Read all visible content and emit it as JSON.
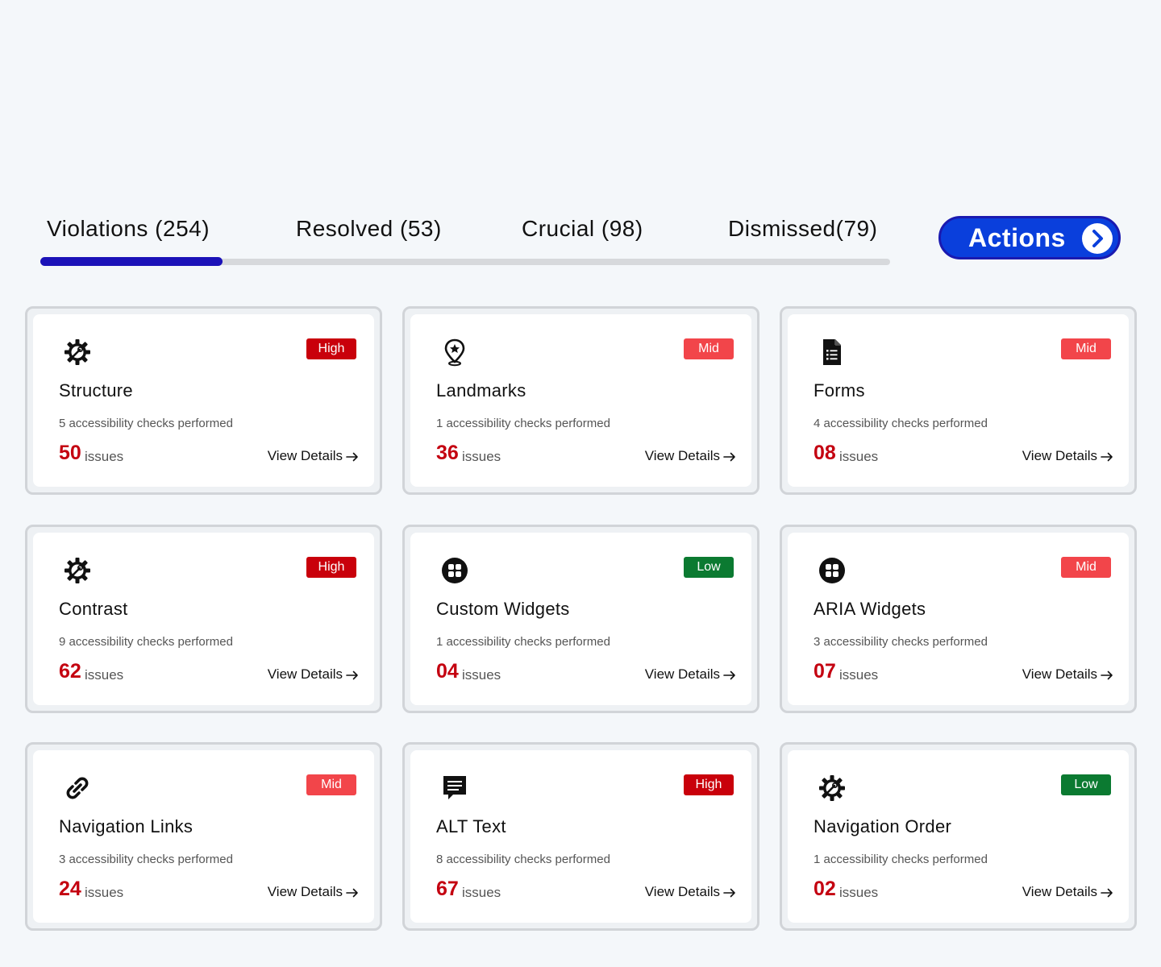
{
  "tabs": [
    {
      "label": "Violations (254)"
    },
    {
      "label": "Resolved (53)"
    },
    {
      "label": "Crucial (98)"
    },
    {
      "label": "Dismissed(79)"
    }
  ],
  "actions": {
    "label": "Actions"
  },
  "cards": [
    {
      "title": "Structure",
      "icon": "gear-wrench-icon",
      "severity": "High",
      "checks": "5 accessibility checks performed",
      "count": "50",
      "issues_label": "issues",
      "details": "View Details"
    },
    {
      "title": "Landmarks",
      "icon": "location-pin-icon",
      "severity": "Mid",
      "checks": "1 accessibility checks performed",
      "count": "36",
      "issues_label": "issues",
      "details": "View Details"
    },
    {
      "title": "Forms",
      "icon": "form-document-icon",
      "severity": "Mid",
      "checks": "4 accessibility checks performed",
      "count": "08",
      "issues_label": "issues",
      "details": "View Details"
    },
    {
      "title": "Contrast",
      "icon": "gear-wrench-icon",
      "severity": "High",
      "checks": "9 accessibility checks performed",
      "count": "62",
      "issues_label": "issues",
      "details": "View Details"
    },
    {
      "title": "Custom Widgets",
      "icon": "widgets-icon",
      "severity": "Low",
      "checks": "1 accessibility checks performed",
      "count": "04",
      "issues_label": "issues",
      "details": "View Details"
    },
    {
      "title": "ARIA Widgets",
      "icon": "widgets-icon",
      "severity": "Mid",
      "checks": "3 accessibility checks performed",
      "count": "07",
      "issues_label": "issues",
      "details": "View Details"
    },
    {
      "title": "Navigation Links",
      "icon": "link-icon",
      "severity": "Mid",
      "checks": "3 accessibility checks performed",
      "count": "24",
      "issues_label": "issues",
      "details": "View Details"
    },
    {
      "title": "ALT Text",
      "icon": "message-icon",
      "severity": "High",
      "checks": "8 accessibility checks performed",
      "count": "67",
      "issues_label": "issues",
      "details": "View Details"
    },
    {
      "title": "Navigation Order",
      "icon": "gear-wrench-icon",
      "severity": "Low",
      "checks": "1 accessibility checks performed",
      "count": "02",
      "issues_label": "issues",
      "details": "View Details"
    }
  ]
}
